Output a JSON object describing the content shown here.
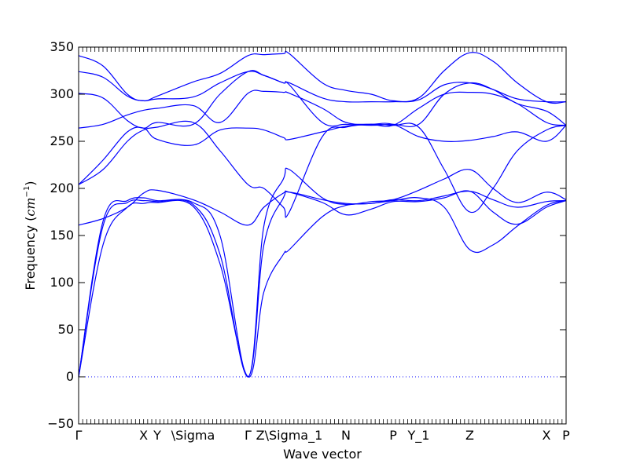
{
  "chart_data": {
    "type": "line",
    "title": "",
    "xlabel": "Wave vector",
    "ylabel": "Frequency ($cm^{-1}$)",
    "ylim": [
      -50,
      350
    ],
    "yticks": [
      -50,
      0,
      50,
      100,
      150,
      200,
      250,
      300,
      350
    ],
    "xlim": [
      0,
      1
    ],
    "high_symmetry_points": [
      {
        "label": "Γ",
        "x": 0.0
      },
      {
        "label": "X",
        "x": 0.1333
      },
      {
        "label": "Y",
        "x": 0.1613
      },
      {
        "label": "\\Sigma",
        "x": 0.2347
      },
      {
        "label": "Γ",
        "x": 0.3476
      },
      {
        "label": "Z\\Sigma_1",
        "x": 0.4322
      },
      {
        "label": "N",
        "x": 0.5484
      },
      {
        "label": "P",
        "x": 0.6452
      },
      {
        "label": "Y_1",
        "x": 0.6976
      },
      {
        "label": "Z",
        "x": 0.8024
      },
      {
        "label": "X",
        "x": 0.9597
      },
      {
        "label": "P",
        "x": 1.0
      }
    ],
    "zero_line": 0,
    "series": [
      {
        "x": [
          0.0,
          0.05,
          0.1,
          0.1333,
          0.1613,
          0.2347,
          0.29,
          0.3476,
          0.38,
          0.42,
          0.4322,
          0.5,
          0.5484,
          0.6,
          0.6452,
          0.6976,
          0.75,
          0.8024,
          0.85,
          0.9,
          0.9597,
          1.0
        ],
        "y": [
          0,
          140,
          180,
          184,
          185,
          181,
          120,
          0,
          90,
          130,
          135,
          170,
          182,
          184,
          187,
          190,
          180,
          135,
          140,
          160,
          182,
          187
        ]
      },
      {
        "x": [
          0.0,
          0.05,
          0.1,
          0.1333,
          0.1613,
          0.2347,
          0.29,
          0.3476,
          0.38,
          0.42,
          0.4322,
          0.5,
          0.5484,
          0.6,
          0.6452,
          0.6976,
          0.75,
          0.8024,
          0.85,
          0.9,
          0.9597,
          1.0
        ],
        "y": [
          0,
          160,
          185,
          187,
          186,
          183,
          130,
          0,
          140,
          190,
          196,
          188,
          184,
          184,
          188,
          187,
          192,
          197,
          188,
          180,
          186,
          187
        ]
      },
      {
        "x": [
          0.0,
          0.05,
          0.1,
          0.1333,
          0.1613,
          0.2347,
          0.29,
          0.3476,
          0.38,
          0.42,
          0.4322,
          0.5,
          0.5484,
          0.6,
          0.6452,
          0.6976,
          0.75,
          0.8024,
          0.85,
          0.9,
          0.9597,
          1.0
        ],
        "y": [
          0,
          165,
          187,
          190,
          187,
          185,
          150,
          0,
          160,
          210,
          220,
          190,
          183,
          186,
          188,
          198,
          210,
          220,
          200,
          185,
          196,
          188
        ]
      },
      {
        "x": [
          0.0,
          0.05,
          0.1,
          0.1333,
          0.1613,
          0.2347,
          0.29,
          0.3476,
          0.38,
          0.42,
          0.4322,
          0.5,
          0.5484,
          0.6,
          0.6452,
          0.6976,
          0.75,
          0.8024,
          0.85,
          0.9,
          0.9597,
          1.0
        ],
        "y": [
          161,
          168,
          180,
          195,
          198,
          188,
          175,
          161,
          180,
          195,
          196,
          185,
          172,
          178,
          186,
          186,
          190,
          197,
          175,
          162,
          180,
          187
        ]
      },
      {
        "x": [
          0.0,
          0.05,
          0.1,
          0.1333,
          0.1613,
          0.2347,
          0.29,
          0.3476,
          0.38,
          0.42,
          0.4322,
          0.5,
          0.5484,
          0.6,
          0.6452,
          0.6976,
          0.75,
          0.8024,
          0.85,
          0.9,
          0.9597,
          1.0
        ],
        "y": [
          204,
          220,
          250,
          262,
          265,
          270,
          240,
          204,
          200,
          180,
          175,
          255,
          265,
          268,
          267,
          265,
          220,
          175,
          200,
          240,
          262,
          267
        ]
      },
      {
        "x": [
          0.0,
          0.05,
          0.1,
          0.1333,
          0.1613,
          0.2347,
          0.29,
          0.3476,
          0.38,
          0.42,
          0.4322,
          0.5,
          0.5484,
          0.6,
          0.6452,
          0.6976,
          0.75,
          0.8024,
          0.85,
          0.9,
          0.9597,
          1.0
        ],
        "y": [
          204,
          230,
          260,
          264,
          252,
          246,
          262,
          264,
          262,
          254,
          252,
          260,
          266,
          268,
          268,
          255,
          250,
          251,
          255,
          260,
          250,
          267
        ]
      },
      {
        "x": [
          0.0,
          0.05,
          0.1,
          0.1333,
          0.1613,
          0.2347,
          0.29,
          0.3476,
          0.38,
          0.42,
          0.4322,
          0.5,
          0.5484,
          0.6,
          0.6452,
          0.6976,
          0.75,
          0.8024,
          0.85,
          0.9,
          0.9597,
          1.0
        ],
        "y": [
          264,
          268,
          278,
          283,
          285,
          288,
          270,
          301,
          303,
          302,
          301,
          285,
          270,
          268,
          267,
          285,
          300,
          302,
          300,
          290,
          270,
          267
        ]
      },
      {
        "x": [
          0.0,
          0.05,
          0.1,
          0.1333,
          0.1613,
          0.2347,
          0.29,
          0.3476,
          0.38,
          0.42,
          0.4322,
          0.5,
          0.5484,
          0.6,
          0.6452,
          0.6976,
          0.75,
          0.8024,
          0.85,
          0.9,
          0.9597,
          1.0
        ],
        "y": [
          301,
          296,
          272,
          264,
          270,
          268,
          300,
          324,
          320,
          312,
          310,
          270,
          268,
          267,
          268,
          268,
          300,
          312,
          305,
          290,
          282,
          267
        ]
      },
      {
        "x": [
          0.0,
          0.05,
          0.1,
          0.1333,
          0.1613,
          0.2347,
          0.29,
          0.3476,
          0.38,
          0.42,
          0.4322,
          0.5,
          0.5484,
          0.6,
          0.6452,
          0.6976,
          0.75,
          0.8024,
          0.85,
          0.9,
          0.9597,
          1.0
        ],
        "y": [
          324,
          318,
          298,
          293,
          295,
          297,
          312,
          324,
          320,
          312,
          312,
          296,
          292,
          292,
          292,
          294,
          310,
          312,
          305,
          295,
          292,
          292
        ]
      },
      {
        "x": [
          0.0,
          0.05,
          0.1,
          0.1333,
          0.1613,
          0.2347,
          0.29,
          0.3476,
          0.38,
          0.42,
          0.4322,
          0.5,
          0.5484,
          0.6,
          0.6452,
          0.6976,
          0.75,
          0.8024,
          0.85,
          0.9,
          0.9597,
          1.0
        ],
        "y": [
          341,
          330,
          300,
          293,
          298,
          313,
          322,
          341,
          342,
          343,
          343,
          312,
          304,
          300,
          293,
          296,
          325,
          344,
          335,
          312,
          292,
          292
        ]
      }
    ]
  }
}
